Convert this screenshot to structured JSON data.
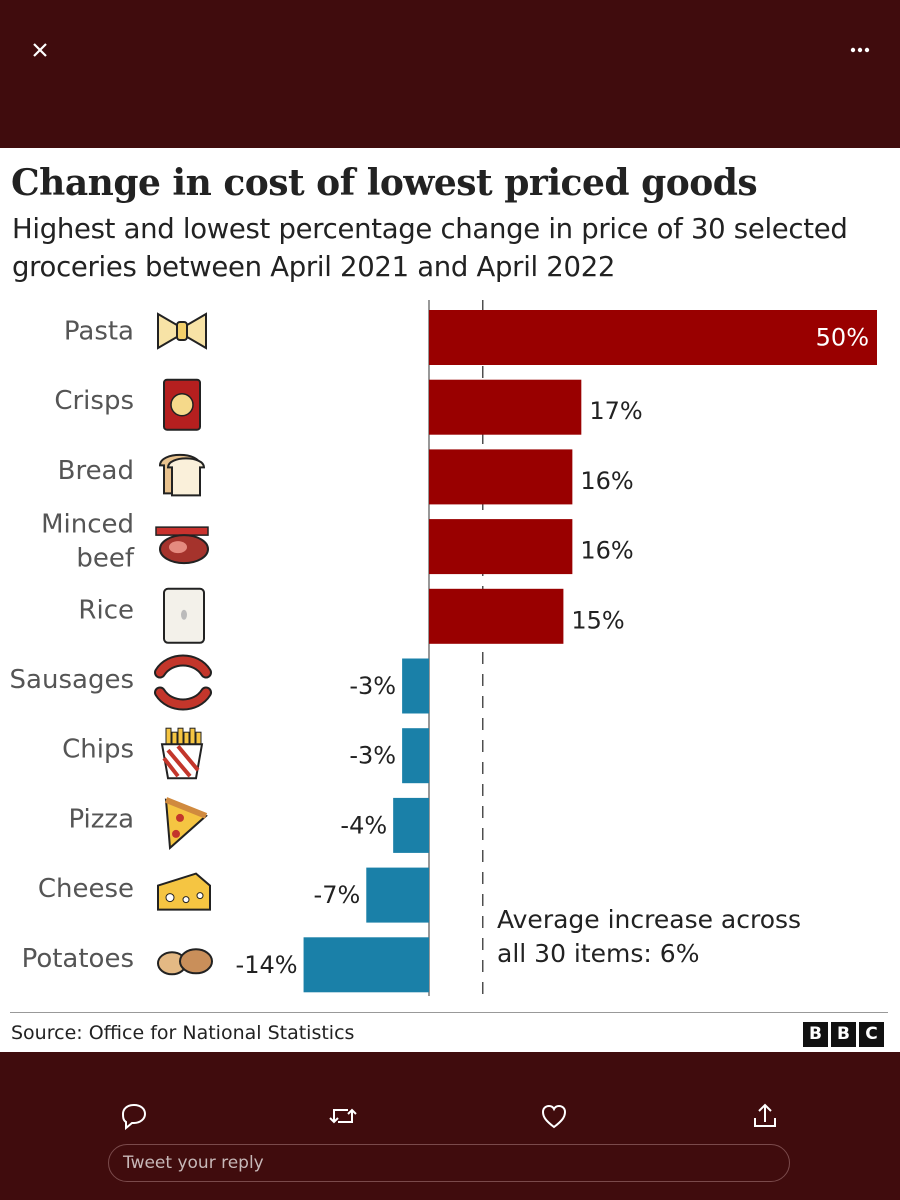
{
  "topbar": {
    "close_icon": "close-icon",
    "more_icon": "more-dots-icon"
  },
  "card": {
    "title": "Change in cost of lowest priced goods",
    "subtitle": "Highest and lowest percentage change in price of 30 selected groceries between April 2021 and April 2022",
    "source": "Source: Office for National Statistics",
    "logo": [
      "B",
      "B",
      "C"
    ]
  },
  "chart_data": {
    "type": "bar",
    "orientation": "horizontal",
    "categories": [
      "Pasta",
      "Crisps",
      "Bread",
      "Minced beef",
      "Rice",
      "Sausages",
      "Chips",
      "Pizza",
      "Cheese",
      "Potatoes"
    ],
    "values": [
      50,
      17,
      16,
      16,
      15,
      -3,
      -3,
      -4,
      -7,
      -14
    ],
    "value_labels": [
      "50%",
      "17%",
      "16%",
      "16%",
      "15%",
      "-3%",
      "-3%",
      "-4%",
      "-7%",
      "-14%"
    ],
    "icons": [
      "pasta-icon",
      "crisps-icon",
      "bread-icon",
      "minced-beef-icon",
      "rice-icon",
      "sausages-icon",
      "chips-icon",
      "pizza-icon",
      "cheese-icon",
      "potatoes-icon"
    ],
    "positive_color": "#990000",
    "negative_color": "#1a80a8",
    "average": 6,
    "average_label": [
      "Average increase across",
      "all 30 items: 6%"
    ],
    "xlim": [
      -14,
      50
    ],
    "title": "Change in cost of lowest priced goods"
  },
  "actions": {
    "icons": [
      "reply-icon",
      "retweet-icon",
      "like-icon",
      "share-icon"
    ]
  },
  "reply": {
    "placeholder": "Tweet your reply"
  }
}
